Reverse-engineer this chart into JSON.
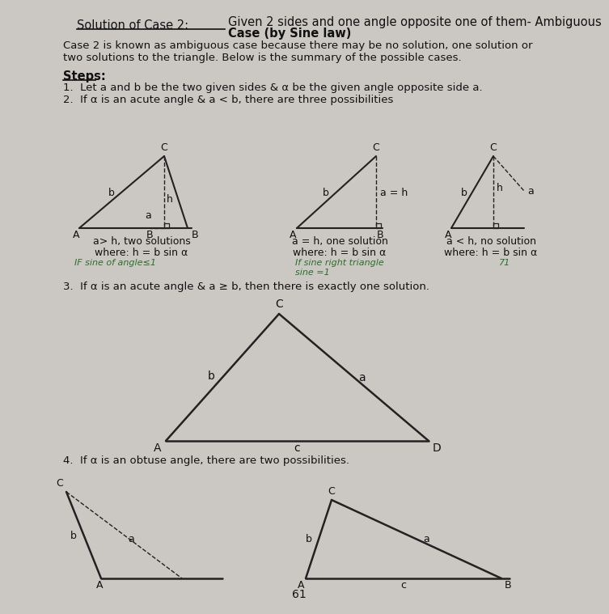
{
  "bg_color": "#cbc8c3",
  "text_color": "#111111",
  "page_num": "61",
  "title_left": "Solution of Case 2:",
  "title_right_1": "Given 2 sides and one angle opposite one of them- Ambiguous",
  "title_right_2": "Case (by Sine law)",
  "intro": "Case 2 is known as ambiguous case because there may be no solution, one solution or\ntwo solutions to the triangle. Below is the summary of the possible cases.",
  "steps_label": "Steps:",
  "step1": "1.  Let a and b be the two given sides & α be the given angle opposite side a.",
  "step2": "2.  If α is an acute angle & a < b, there are three possibilities",
  "case1_lbl": "a> h, two solutions",
  "case1_sub": "where: h = b sin α",
  "case1_note": "IF sine of angle≤1",
  "case2_lbl": "a = h, one solution",
  "case2_sub": "where: h = b sin α",
  "case2_note": "If sine right triangle\nsine =1",
  "case3_lbl": "a < h, no solution",
  "case3_sub": "where: h = b sin α",
  "case3_note": "71",
  "step3": "3.  If α is an acute angle & a ≥ b, then there is exactly one solution.",
  "step4": "4.  If α is an obtuse angle, there are two possibilities.",
  "line_color": "#222222",
  "green_color": "#2a6e2a"
}
